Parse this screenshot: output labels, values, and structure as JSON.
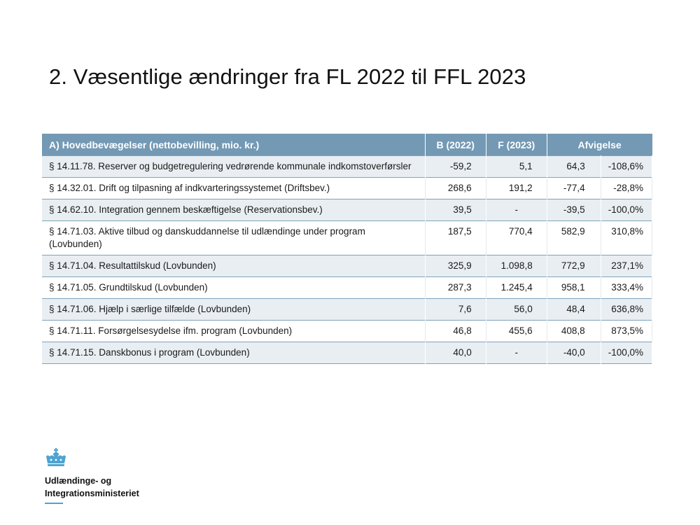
{
  "title": "2. Væsentlige ændringer fra FL 2022 til FFL 2023",
  "table": {
    "headers": {
      "description": "A) Hovedbevægelser (nettobevilling, mio. kr.)",
      "b2022": "B (2022)",
      "f2023": "F (2023)",
      "deviation": "Afvigelse"
    },
    "rows": [
      {
        "label": "§ 14.11.78. Reserver og budgetregulering vedrørende kommunale indkomstoverførsler",
        "b": "-59,2",
        "f": "5,1",
        "diff": "64,3",
        "pct": "-108,6%"
      },
      {
        "label": "§ 14.32.01. Drift og tilpasning af indkvarteringssystemet (Driftsbev.)",
        "b": "268,6",
        "f": "191,2",
        "diff": "-77,4",
        "pct": "-28,8%"
      },
      {
        "label": "§ 14.62.10. Integration gennem beskæftigelse (Reservationsbev.)",
        "b": "39,5",
        "f": "-",
        "diff": "-39,5",
        "pct": "-100,0%"
      },
      {
        "label": "§ 14.71.03. Aktive tilbud og danskuddannelse til udlændinge under program (Lovbunden)",
        "b": "187,5",
        "f": "770,4",
        "diff": "582,9",
        "pct": "310,8%"
      },
      {
        "label": "§ 14.71.04. Resultattilskud (Lovbunden)",
        "b": "325,9",
        "f": "1.098,8",
        "diff": "772,9",
        "pct": "237,1%"
      },
      {
        "label": "§ 14.71.05. Grundtilskud (Lovbunden)",
        "b": "287,3",
        "f": "1.245,4",
        "diff": "958,1",
        "pct": "333,4%"
      },
      {
        "label": "§ 14.71.06. Hjælp i særlige tilfælde (Lovbunden)",
        "b": "7,6",
        "f": "56,0",
        "diff": "48,4",
        "pct": "636,8%"
      },
      {
        "label": "§ 14.71.11. Forsørgelsesydelse ifm. program (Lovbunden)",
        "b": "46,8",
        "f": "455,6",
        "diff": "408,8",
        "pct": "873,5%"
      },
      {
        "label": "§ 14.71.15. Danskbonus i program (Lovbunden)",
        "b": "40,0",
        "f": "-",
        "diff": "-40,0",
        "pct": "-100,0%"
      }
    ]
  },
  "logo": {
    "icon": "crown-icon",
    "line1": "Udlændinge- og",
    "line2": "Integrationsministeriet",
    "color": "#4fa3d1"
  },
  "colors": {
    "header_bg": "#7499b4",
    "row_shade": "#e8eef2"
  }
}
